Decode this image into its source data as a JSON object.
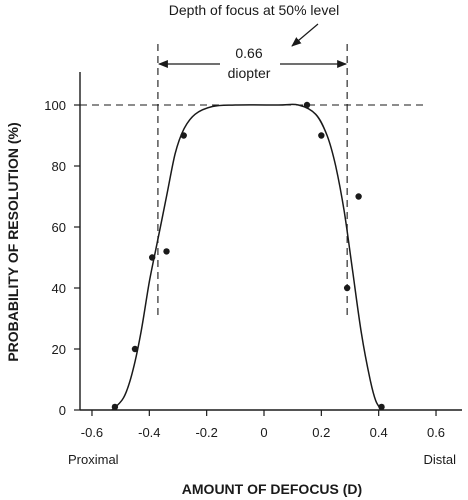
{
  "chart_data": {
    "type": "scatter",
    "xlabel": "AMOUNT OF DEFOCUS (D)",
    "ylabel": "PROBABILITY OF RESOLUTION (%)",
    "xlim": [
      -0.65,
      0.65
    ],
    "ylim": [
      0,
      110
    ],
    "x_ticks": [
      -0.6,
      -0.4,
      -0.2,
      0,
      0.2,
      0.4,
      0.6
    ],
    "x_tick_labels": [
      "-0.6",
      "-0.4",
      "-0.2",
      "0",
      "0.2",
      "0.4",
      "0.6"
    ],
    "y_ticks": [
      0,
      20,
      40,
      60,
      80,
      100
    ],
    "y_tick_labels": [
      "0",
      "20",
      "40",
      "60",
      "80",
      "100"
    ],
    "left_end_label": "Proximal",
    "right_end_label": "Distal",
    "points": [
      {
        "x": -0.52,
        "y": 1
      },
      {
        "x": -0.45,
        "y": 20
      },
      {
        "x": -0.39,
        "y": 50
      },
      {
        "x": -0.34,
        "y": 52
      },
      {
        "x": -0.28,
        "y": 90
      },
      {
        "x": 0.15,
        "y": 100
      },
      {
        "x": 0.2,
        "y": 90
      },
      {
        "x": 0.29,
        "y": 40
      },
      {
        "x": 0.33,
        "y": 70
      },
      {
        "x": 0.41,
        "y": 1
      }
    ],
    "fitted_curve": [
      {
        "x": -0.53,
        "y": 0
      },
      {
        "x": -0.49,
        "y": 4
      },
      {
        "x": -0.46,
        "y": 12
      },
      {
        "x": -0.43,
        "y": 25
      },
      {
        "x": -0.4,
        "y": 42
      },
      {
        "x": -0.37,
        "y": 56
      },
      {
        "x": -0.34,
        "y": 70
      },
      {
        "x": -0.31,
        "y": 84
      },
      {
        "x": -0.28,
        "y": 92
      },
      {
        "x": -0.24,
        "y": 97
      },
      {
        "x": -0.18,
        "y": 99.5
      },
      {
        "x": -0.1,
        "y": 100
      },
      {
        "x": 0.05,
        "y": 100
      },
      {
        "x": 0.12,
        "y": 100
      },
      {
        "x": 0.18,
        "y": 97
      },
      {
        "x": 0.22,
        "y": 90
      },
      {
        "x": 0.25,
        "y": 80
      },
      {
        "x": 0.28,
        "y": 65
      },
      {
        "x": 0.31,
        "y": 45
      },
      {
        "x": 0.34,
        "y": 25
      },
      {
        "x": 0.37,
        "y": 10
      },
      {
        "x": 0.39,
        "y": 3
      },
      {
        "x": 0.41,
        "y": 0
      }
    ],
    "reference_lines": {
      "horizontal_y": 100,
      "vertical_x": [
        -0.37,
        0.29
      ]
    },
    "annotation": {
      "width_value": "0.66",
      "width_unit": "diopter",
      "note": "Depth of focus at 50% level"
    },
    "grid": false
  }
}
